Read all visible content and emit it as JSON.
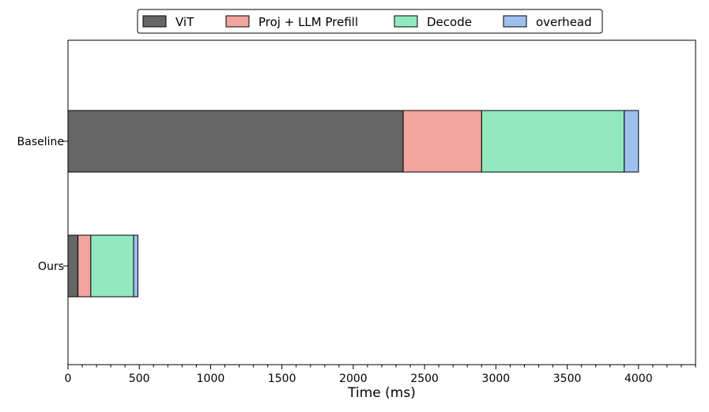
{
  "chart_data": {
    "type": "bar",
    "orientation": "horizontal",
    "stacked": true,
    "categories": [
      "Baseline",
      "Ours"
    ],
    "series": [
      {
        "name": "ViT",
        "color": "#666666",
        "values": [
          2350,
          70
        ]
      },
      {
        "name": "Proj + LLM Prefill",
        "color": "#f2a49f",
        "values": [
          550,
          90
        ]
      },
      {
        "name": "Decode",
        "color": "#92e8bf",
        "values": [
          1000,
          300
        ]
      },
      {
        "name": "overhead",
        "color": "#9ec0ee",
        "values": [
          100,
          30
        ]
      }
    ],
    "xlabel": "Time (ms)",
    "ylabel": "",
    "xlim": [
      0,
      4400
    ],
    "xticks": [
      "0",
      "500",
      "1000",
      "1500",
      "2000",
      "2500",
      "3000",
      "3500",
      "4000"
    ],
    "grid": false,
    "legend_position": "top-center"
  }
}
